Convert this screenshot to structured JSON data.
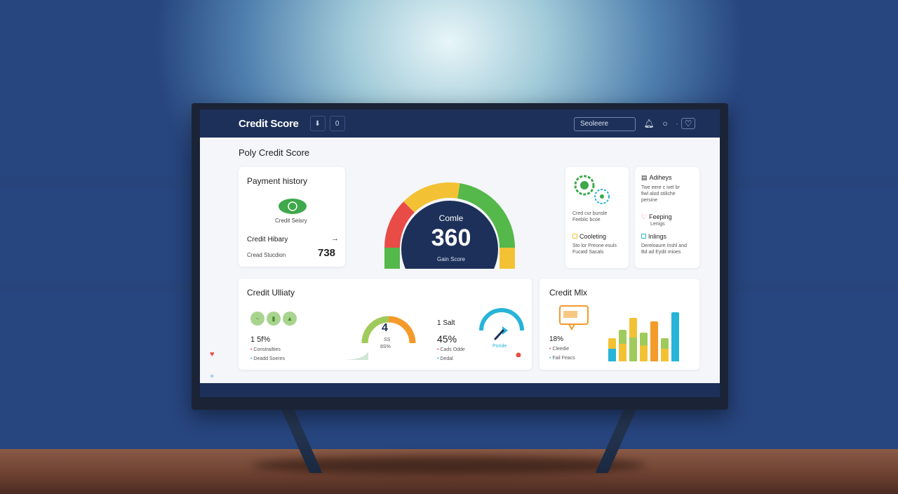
{
  "header": {
    "app_title": "Credit Score",
    "btn1_icon": "⬇",
    "btn2_label": "0",
    "search_placeholder": "Seoleere",
    "icons": [
      "bell-icon",
      "circle-icon",
      "heart-icon"
    ]
  },
  "page_title": "Poly Credit Score",
  "payment": {
    "title": "Payment history",
    "badge_label": "Credit Seisry",
    "credit_history_label": "Credit Hibary",
    "arrow": "→",
    "sub_label": "Cread Stucdion",
    "value": "738"
  },
  "gauge": {
    "caption": "Comle",
    "score": "360",
    "sub": "Gain Score",
    "colors": [
      "#e94b47",
      "#f3c234",
      "#55b84a"
    ]
  },
  "tiles": {
    "tile1_lines": [
      "Cred cur bunsle",
      "Feeblic bcoe"
    ],
    "activity_title": "Adiheys",
    "activity_lines": [
      "Twe eere c ivel br",
      "fiwl alod stiliche",
      "persine"
    ],
    "cooleting_title": "Cooleting",
    "cooleting_lines": [
      "Sto lor Preone esuls",
      "Fucatd Sacals"
    ],
    "feeping_title": "Feeping",
    "feeping_sub": "Lenigs",
    "inlings_title": "Inlings",
    "inlings_lines": [
      "Dereloaure Inshl and",
      "Bd ad Eydit mioes"
    ]
  },
  "utility": {
    "title": "Credit Ulliaty",
    "pct": "1 5f%",
    "legend": [
      "Constrailties",
      "Deadd Soeres"
    ],
    "gauge1_value": "4",
    "gauge1_sub1": "SS",
    "gauge1_sub2": "8S%",
    "salt_label": "1 Salt",
    "salt_pct": "45%",
    "salt_legend": [
      "Cads Odde",
      "Dedal"
    ],
    "gauge2_label": "Poride"
  },
  "mix": {
    "title": "Credit Mlx",
    "pct": "18%",
    "legend": [
      "Cleedie",
      "Fail Feacs"
    ]
  },
  "chart_data": {
    "type": "bar",
    "title": "Credit Mlx",
    "categories": [
      "1",
      "2",
      "3",
      "4",
      "5",
      "6",
      "7"
    ],
    "series": [
      {
        "values": [
          40,
          55,
          75,
          50,
          70,
          40,
          85
        ]
      }
    ],
    "ylim": [
      0,
      100
    ]
  },
  "colors": {
    "navy": "#1d3059",
    "red": "#e94b47",
    "yellow": "#f3c234",
    "green": "#55b84a",
    "orange": "#f39a2b",
    "teal": "#27b4d8"
  }
}
